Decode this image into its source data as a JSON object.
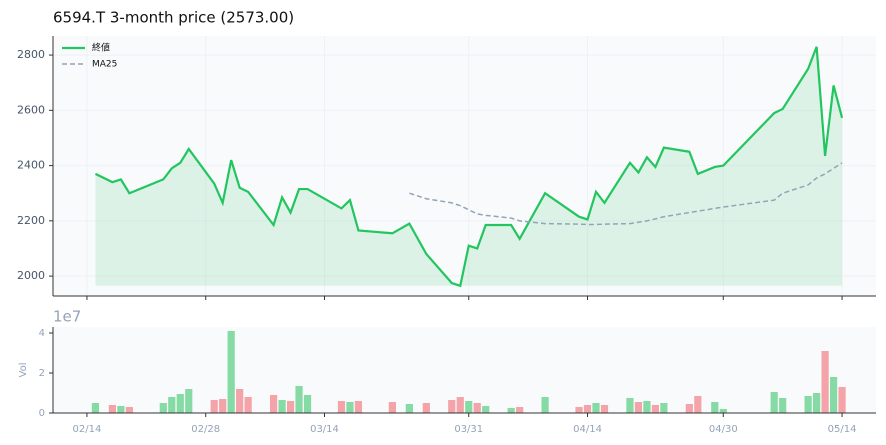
{
  "chart_data": [
    {
      "type": "line",
      "title": "6594.T  3-month price (2573.00)",
      "x": [
        "02/15",
        "02/17",
        "02/18",
        "02/19",
        "02/23",
        "02/24",
        "02/25",
        "02/26",
        "03/01",
        "03/02",
        "03/03",
        "03/04",
        "03/05",
        "03/08",
        "03/09",
        "03/10",
        "03/11",
        "03/12",
        "03/16",
        "03/17",
        "03/18",
        "03/22",
        "03/24",
        "03/26",
        "03/29",
        "03/30",
        "03/31",
        "04/01",
        "04/02",
        "04/05",
        "04/06",
        "04/09",
        "04/13",
        "04/14",
        "04/15",
        "04/16",
        "04/19",
        "04/20",
        "04/21",
        "04/22",
        "04/23",
        "04/26",
        "04/27",
        "04/29",
        "04/30",
        "05/06",
        "05/07",
        "05/10",
        "05/11",
        "05/12",
        "05/13",
        "05/14"
      ],
      "series": [
        {
          "name": "終値",
          "color": "#22c55e",
          "fill": true,
          "values": [
            2370,
            2340,
            2350,
            2300,
            2350,
            2390,
            2410,
            2460,
            2335,
            2265,
            2420,
            2320,
            2305,
            2185,
            2285,
            2230,
            2315,
            2315,
            2245,
            2275,
            2165,
            2155,
            2190,
            2080,
            1975,
            1965,
            2110,
            2100,
            2185,
            2185,
            2135,
            2300,
            2215,
            2205,
            2305,
            2265,
            2410,
            2375,
            2430,
            2395,
            2465,
            2450,
            2370,
            2395,
            2400,
            2590,
            2605,
            2750,
            2830,
            2435,
            2690,
            2573
          ]
        },
        {
          "name": "MA25",
          "color": "#94a3b8",
          "dashed": true,
          "values": [
            null,
            null,
            null,
            null,
            null,
            null,
            null,
            null,
            null,
            null,
            null,
            null,
            null,
            null,
            null,
            null,
            null,
            null,
            null,
            null,
            null,
            null,
            2300,
            2280,
            2265,
            2255,
            2240,
            2225,
            2220,
            2210,
            2200,
            2190,
            2188,
            2187,
            2187,
            2188,
            2190,
            2195,
            2200,
            2207,
            2215,
            2230,
            2235,
            2245,
            2250,
            2275,
            2300,
            2330,
            2355,
            2370,
            2390,
            2410
          ]
        }
      ],
      "xlim": [
        "02/10",
        "05/18"
      ],
      "ylim": [
        1928,
        2869
      ],
      "yticks": [
        2000,
        2200,
        2400,
        2600,
        2800
      ],
      "grid": true,
      "legend": "upper left"
    },
    {
      "type": "bar",
      "ylabel": "Vol",
      "offset_label": "1e7",
      "up_color": "#86dba4",
      "down_color": "#f4a3a8",
      "values": [
        0.5,
        0.4,
        0.35,
        0.3,
        0.5,
        0.8,
        0.95,
        1.2,
        0.65,
        0.7,
        4.1,
        1.2,
        0.8,
        0.9,
        0.65,
        0.6,
        1.35,
        0.9,
        0.6,
        0.55,
        0.6,
        0.55,
        0.45,
        0.5,
        0.65,
        0.8,
        0.6,
        0.5,
        0.35,
        0.25,
        0.3,
        0.8,
        0.3,
        0.4,
        0.5,
        0.4,
        0.75,
        0.55,
        0.6,
        0.4,
        0.5,
        0.45,
        0.85,
        0.55,
        0.2,
        1.05,
        0.75,
        0.85,
        1.0,
        3.1,
        1.8,
        1.3
      ],
      "ylim": [
        0,
        4.3
      ],
      "yticks": [
        0,
        2,
        4
      ],
      "xticks": [
        "02/14",
        "02/28",
        "03/14",
        "03/31",
        "04/14",
        "04/30",
        "05/14"
      ]
    }
  ]
}
